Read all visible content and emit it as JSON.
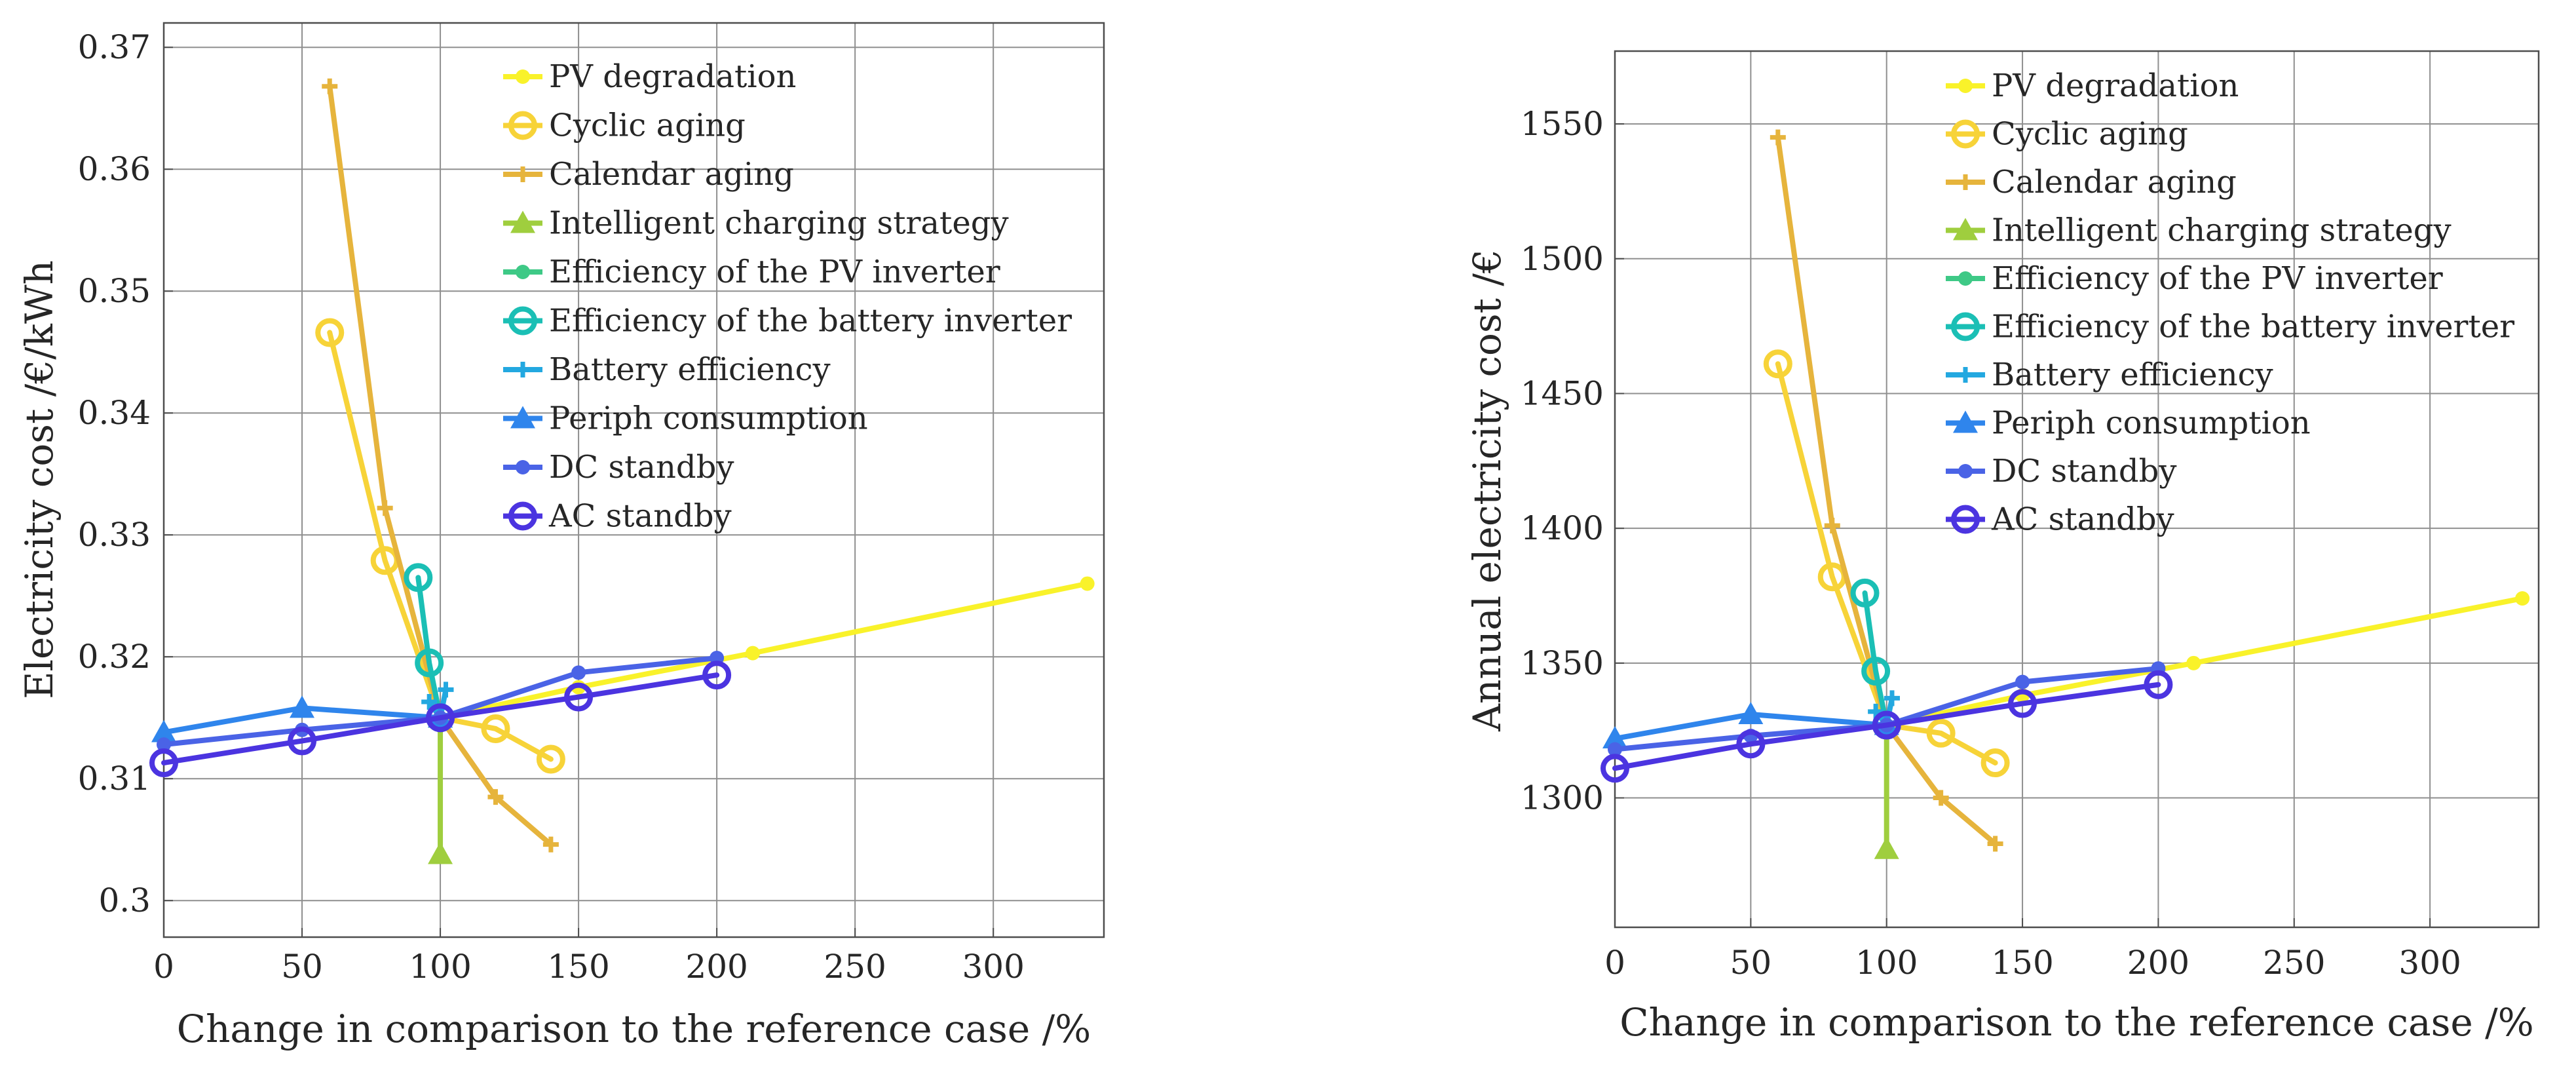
{
  "chart_data": [
    {
      "type": "line",
      "title": "",
      "xlabel": "Change in comparison to the reference case /%",
      "ylabel": "Electricity cost /€/kWh",
      "xlim": [
        0,
        340
      ],
      "ylim": [
        0.297,
        0.372
      ],
      "xticks": [
        0,
        50,
        100,
        150,
        200,
        250,
        300
      ],
      "yticks": [
        0.3,
        0.31,
        0.32,
        0.33,
        0.34,
        0.35,
        0.36,
        0.37
      ],
      "ytick_labels": [
        "0.3",
        "0.31",
        "0.32",
        "0.33",
        "0.34",
        "0.35",
        "0.36",
        "0.37"
      ],
      "grid": true,
      "legend_position": "top-center",
      "series": [
        {
          "name": "PV degradation",
          "color": "#f9f22a",
          "marker": "dot",
          "x": [
            100,
            150,
            213,
            334
          ],
          "y": [
            0.315,
            0.3175,
            0.3203,
            0.326
          ]
        },
        {
          "name": "Cyclic aging",
          "color": "#f7d338",
          "marker": "circle",
          "x": [
            60,
            80,
            100,
            120,
            140
          ],
          "y": [
            0.3466,
            0.3279,
            0.315,
            0.3141,
            0.3116
          ]
        },
        {
          "name": "Calendar aging",
          "color": "#e6b43c",
          "marker": "plus",
          "x": [
            60,
            80,
            100,
            120,
            140
          ],
          "y": [
            0.3668,
            0.3322,
            0.315,
            0.3085,
            0.3046
          ]
        },
        {
          "name": "Intelligent charging strategy",
          "color": "#9fce3e",
          "marker": "triangle",
          "x": [
            100,
            100
          ],
          "y": [
            0.315,
            0.3038
          ]
        },
        {
          "name": "Efficiency of the PV inverter",
          "color": "#3ec986",
          "marker": "dot",
          "x": [
            100
          ],
          "y": [
            0.315
          ]
        },
        {
          "name": "Efficiency of the battery inverter",
          "color": "#1bbfb5",
          "marker": "circle",
          "x": [
            92,
            96,
            100
          ],
          "y": [
            0.3265,
            0.3195,
            0.315
          ]
        },
        {
          "name": "Battery efficiency",
          "color": "#23a8e0",
          "marker": "plus",
          "x": [
            96,
            100,
            102
          ],
          "y": [
            0.3163,
            0.315,
            0.3173
          ]
        },
        {
          "name": "Periph consumption",
          "color": "#2f85ec",
          "marker": "triangle",
          "x": [
            0,
            50,
            100
          ],
          "y": [
            0.3138,
            0.3158,
            0.315
          ]
        },
        {
          "name": "DC standby",
          "color": "#4a63e6",
          "marker": "dot",
          "x": [
            0,
            50,
            100,
            150,
            200
          ],
          "y": [
            0.3128,
            0.314,
            0.315,
            0.3187,
            0.3199
          ]
        },
        {
          "name": "AC standby",
          "color": "#4b34e0",
          "marker": "circle",
          "x": [
            0,
            50,
            100,
            150,
            200
          ],
          "y": [
            0.3113,
            0.3131,
            0.315,
            0.3167,
            0.3185
          ]
        }
      ]
    },
    {
      "type": "line",
      "title": "",
      "xlabel": "Change in comparison to the reference case /%",
      "ylabel": "Annual electricity cost /€",
      "xlim": [
        0,
        340
      ],
      "ylim": [
        1252,
        1577
      ],
      "xticks": [
        0,
        50,
        100,
        150,
        200,
        250,
        300
      ],
      "yticks": [
        1300,
        1350,
        1400,
        1450,
        1500,
        1550
      ],
      "ytick_labels": [
        "1300",
        "1350",
        "1400",
        "1450",
        "1500",
        "1550"
      ],
      "grid": true,
      "legend_position": "top-center",
      "series": [
        {
          "name": "PV degradation",
          "color": "#f9f22a",
          "marker": "dot",
          "x": [
            100,
            150,
            213,
            334
          ],
          "y": [
            1327,
            1338,
            1350,
            1374
          ]
        },
        {
          "name": "Cyclic aging",
          "color": "#f7d338",
          "marker": "circle",
          "x": [
            60,
            80,
            100,
            120,
            140
          ],
          "y": [
            1461,
            1382,
            1327,
            1324,
            1313
          ]
        },
        {
          "name": "Calendar aging",
          "color": "#e6b43c",
          "marker": "plus",
          "x": [
            60,
            80,
            100,
            120,
            140
          ],
          "y": [
            1545,
            1401,
            1327,
            1300,
            1283
          ]
        },
        {
          "name": "Intelligent charging strategy",
          "color": "#9fce3e",
          "marker": "triangle",
          "x": [
            100,
            100
          ],
          "y": [
            1327,
            1281
          ]
        },
        {
          "name": "Efficiency of the PV inverter",
          "color": "#3ec986",
          "marker": "dot",
          "x": [
            100
          ],
          "y": [
            1327
          ]
        },
        {
          "name": "Efficiency of the battery inverter",
          "color": "#1bbfb5",
          "marker": "circle",
          "x": [
            92,
            96,
            100
          ],
          "y": [
            1376,
            1347,
            1327
          ]
        },
        {
          "name": "Battery efficiency",
          "color": "#23a8e0",
          "marker": "plus",
          "x": [
            96,
            100,
            102
          ],
          "y": [
            1332,
            1327,
            1337
          ]
        },
        {
          "name": "Periph consumption",
          "color": "#2f85ec",
          "marker": "triangle",
          "x": [
            0,
            50,
            100
          ],
          "y": [
            1322,
            1331,
            1327
          ]
        },
        {
          "name": "DC standby",
          "color": "#4a63e6",
          "marker": "dot",
          "x": [
            0,
            50,
            100,
            150,
            200
          ],
          "y": [
            1318,
            1323,
            1327,
            1343,
            1348
          ]
        },
        {
          "name": "AC standby",
          "color": "#4b34e0",
          "marker": "circle",
          "x": [
            0,
            50,
            100,
            150,
            200
          ],
          "y": [
            1311,
            1320,
            1327,
            1335,
            1342
          ]
        }
      ]
    }
  ]
}
